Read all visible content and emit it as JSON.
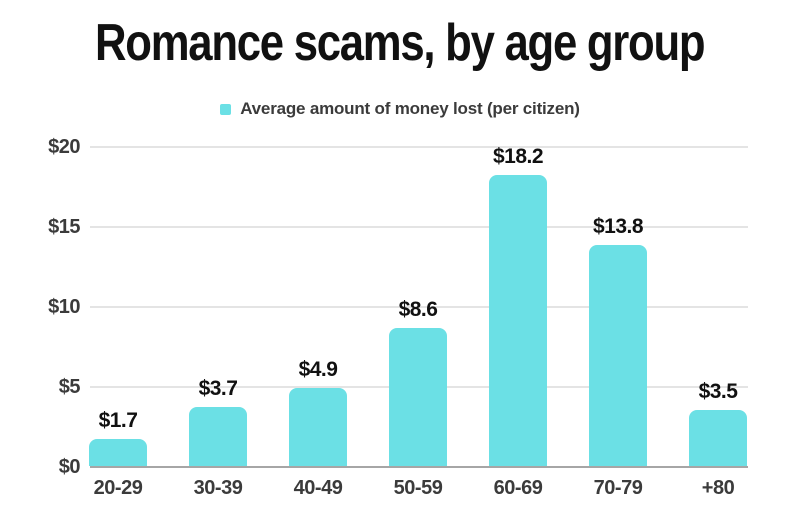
{
  "title": "Romance scams, by age group",
  "legend": {
    "label": "Average amount of money lost (per citizen)"
  },
  "chart_data": {
    "type": "bar",
    "title": "Romance scams, by age group",
    "series_name": "Average amount of money lost (per citizen)",
    "categories": [
      "20-29",
      "30-39",
      "40-49",
      "50-59",
      "60-69",
      "70-79",
      "+80"
    ],
    "values": [
      1.7,
      3.7,
      4.9,
      8.6,
      18.2,
      13.8,
      3.5
    ],
    "data_labels": [
      "$1.7",
      "$3.7",
      "$4.9",
      "$8.6",
      "$18.2",
      "$13.8",
      "$3.5"
    ],
    "xlabel": "",
    "ylabel": "",
    "ylim": [
      0,
      20
    ],
    "yticks": [
      0,
      5,
      10,
      15,
      20
    ],
    "ytick_labels": [
      "$0",
      "$5",
      "$10",
      "$15",
      "$20"
    ],
    "grid": true,
    "legend_position": "top-center",
    "colors": {
      "bar": "#6BE0E5",
      "title_text": "#111111",
      "axis_text": "#3b3b3b",
      "value_label_text": "#111111",
      "gridline": "#e4e4e4",
      "axis_line": "#a6a6a6",
      "background": "#ffffff"
    }
  }
}
